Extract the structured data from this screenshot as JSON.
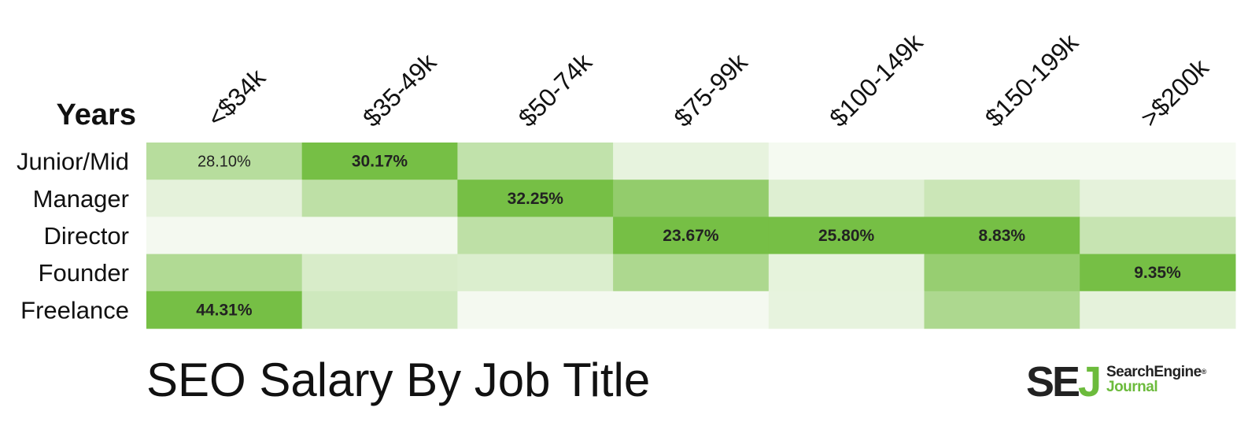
{
  "chart_data": {
    "type": "heatmap",
    "title": "SEO Salary By Job Title",
    "row_header": "Years",
    "columns": [
      "<$34k",
      "$35-49k",
      "$50-74k",
      "$75-99k",
      "$100-149k",
      "$150-199k",
      ">$200k"
    ],
    "rows": [
      "Junior/Mid",
      "Manager",
      "Director",
      "Founder",
      "Freelance"
    ],
    "color_scale": {
      "low": "#f8fbf5",
      "high": "#76bf45"
    },
    "intensity": [
      [
        0.5,
        1.0,
        0.42,
        0.13,
        0.02,
        0.02,
        0.02
      ],
      [
        0.15,
        0.45,
        1.0,
        0.78,
        0.2,
        0.35,
        0.15
      ],
      [
        0.03,
        0.03,
        0.45,
        1.0,
        1.0,
        1.0,
        0.38
      ],
      [
        0.55,
        0.25,
        0.22,
        0.58,
        0.14,
        0.75,
        1.0
      ],
      [
        1.0,
        0.32,
        0.03,
        0.03,
        0.13,
        0.58,
        0.15
      ]
    ],
    "labels": [
      {
        "row": 0,
        "col": 0,
        "text": "28.10%",
        "bold": false
      },
      {
        "row": 0,
        "col": 1,
        "text": "30.17%",
        "bold": true
      },
      {
        "row": 1,
        "col": 2,
        "text": "32.25%",
        "bold": true
      },
      {
        "row": 2,
        "col": 3,
        "text": "23.67%",
        "bold": true
      },
      {
        "row": 2,
        "col": 4,
        "text": "25.80%",
        "bold": true
      },
      {
        "row": 2,
        "col": 5,
        "text": "8.83%",
        "bold": true
      },
      {
        "row": 3,
        "col": 6,
        "text": "9.35%",
        "bold": true
      },
      {
        "row": 4,
        "col": 0,
        "text": "44.31%",
        "bold": true
      }
    ]
  },
  "branding": {
    "logo_mark_se": "SE",
    "logo_mark_j": "J",
    "logo_line1": "SearchEngine",
    "logo_registered": "®",
    "logo_line2": "Journal"
  }
}
